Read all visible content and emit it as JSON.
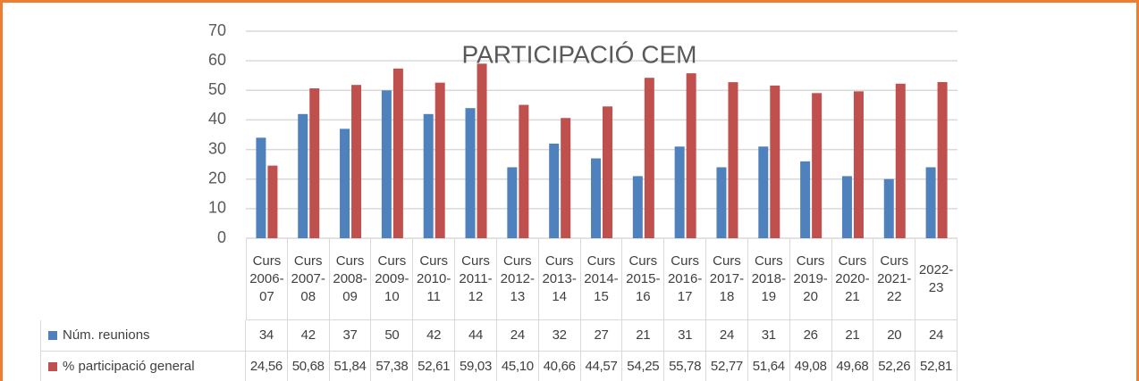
{
  "chart_data": {
    "type": "bar",
    "title": "PARTICIPACIÓ CEM",
    "categories": [
      "Curs 2006-07",
      "Curs 2007-08",
      "Curs 2008-09",
      "Curs 2009-10",
      "Curs 2010-11",
      "Curs 2011-12",
      "Curs 2012-13",
      "Curs 2013-14",
      "Curs 2014-15",
      "Curs 2015-16",
      "Curs 2016-17",
      "Curs 2017-18",
      "Curs 2018-19",
      "Curs 2019-20",
      "Curs 2020-21",
      "Curs 2021-22",
      "2022-23"
    ],
    "series": [
      {
        "name": "Núm. reunions",
        "color": "#4f81bd",
        "values": [
          34,
          42,
          37,
          50,
          42,
          44,
          24,
          32,
          27,
          21,
          31,
          24,
          31,
          26,
          21,
          20,
          24
        ]
      },
      {
        "name": "% participació general",
        "color": "#c0504d",
        "values": [
          24.56,
          50.68,
          51.84,
          57.38,
          52.61,
          59.03,
          45.1,
          40.66,
          44.57,
          54.25,
          55.78,
          52.77,
          51.64,
          49.08,
          49.68,
          52.26,
          52.81
        ],
        "value_labels": [
          "24,56",
          "50,68",
          "51,84",
          "57,38",
          "52,61",
          "59,03",
          "45,10",
          "40,66",
          "44,57",
          "54,25",
          "55,78",
          "52,77",
          "51,64",
          "49,08",
          "49,68",
          "52,26",
          "52,81"
        ]
      }
    ],
    "ylim": [
      0,
      70
    ],
    "yticks": [
      0,
      10,
      20,
      30,
      40,
      50,
      60,
      70
    ],
    "grid": true
  }
}
